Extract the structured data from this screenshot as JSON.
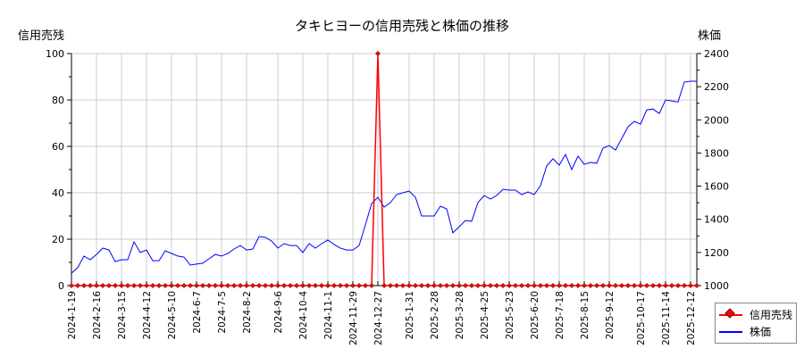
{
  "chart_data": {
    "type": "line",
    "title": "タキヒヨーの信用売残と株価の推移",
    "ylabel_left": "信用売残",
    "ylabel_right": "株価",
    "xlabel": "",
    "ylim_left": [
      0,
      100
    ],
    "ylim_right": [
      1000,
      2400
    ],
    "yticks_left": [
      0,
      20,
      40,
      60,
      80,
      100
    ],
    "yticks_right": [
      1000,
      1200,
      1400,
      1600,
      1800,
      2000,
      2200,
      2400
    ],
    "xtick_labels": [
      "2024-1-19",
      "2024-2-16",
      "2024-3-15",
      "2024-4-12",
      "2024-5-10",
      "2024-6-7",
      "2024-7-5",
      "2024-8-2",
      "2024-9-6",
      "2024-10-4",
      "2024-11-1",
      "2024-11-29",
      "2024-12-27",
      "2025-1-31",
      "2025-2-28",
      "2025-3-28",
      "2025-4-25",
      "2025-5-23",
      "2025-6-20",
      "2025-7-18",
      "2025-8-15",
      "2025-9-12",
      "2025-10-17",
      "2025-11-14",
      "2025-12-12"
    ],
    "xtick_indices": [
      0,
      4,
      8,
      12,
      16,
      20,
      24,
      28,
      33,
      37,
      41,
      45,
      49,
      54,
      58,
      62,
      66,
      70,
      74,
      78,
      82,
      86,
      91,
      95,
      99
    ],
    "grid": true,
    "legend_position": "bottom-right outside",
    "series": [
      {
        "name": "信用売残",
        "axis": "left",
        "color": "#ff0000",
        "marker": "diamond",
        "values": [
          0,
          0,
          0,
          0,
          0,
          0,
          0,
          0,
          0,
          0,
          0,
          0,
          0,
          0,
          0,
          0,
          0,
          0,
          0,
          0,
          0,
          0,
          0,
          0,
          0,
          0,
          0,
          0,
          0,
          0,
          0,
          0,
          0,
          0,
          0,
          0,
          0,
          0,
          0,
          0,
          0,
          0,
          0,
          0,
          0,
          0,
          0,
          0,
          0,
          100,
          0,
          0,
          0,
          0,
          0,
          0,
          0,
          0,
          0,
          0,
          0,
          0,
          0,
          0,
          0,
          0,
          0,
          0,
          0,
          0,
          0,
          0,
          0,
          0,
          0,
          0,
          0,
          0,
          0,
          0,
          0,
          0,
          0,
          0,
          0,
          0,
          0,
          0,
          0,
          0,
          0,
          0,
          0,
          0,
          0,
          0,
          0,
          0,
          0,
          0,
          0
        ]
      },
      {
        "name": "株価",
        "axis": "right",
        "color": "#0000ff",
        "values": [
          1075,
          1108,
          1178,
          1156,
          1188,
          1226,
          1215,
          1145,
          1156,
          1156,
          1264,
          1200,
          1215,
          1150,
          1150,
          1210,
          1194,
          1178,
          1172,
          1124,
          1130,
          1135,
          1162,
          1188,
          1178,
          1194,
          1221,
          1242,
          1215,
          1221,
          1296,
          1291,
          1269,
          1226,
          1253,
          1242,
          1242,
          1200,
          1253,
          1226,
          1253,
          1275,
          1248,
          1226,
          1215,
          1215,
          1242,
          1366,
          1495,
          1533,
          1474,
          1501,
          1549,
          1560,
          1571,
          1533,
          1420,
          1420,
          1420,
          1479,
          1463,
          1318,
          1355,
          1393,
          1388,
          1501,
          1544,
          1522,
          1544,
          1581,
          1576,
          1576,
          1549,
          1565,
          1549,
          1603,
          1722,
          1765,
          1727,
          1791,
          1700,
          1781,
          1732,
          1743,
          1738,
          1829,
          1845,
          1818,
          1888,
          1958,
          1991,
          1974,
          2060,
          2065,
          2038,
          2120,
          2114,
          2108,
          2228,
          2233,
          2233
        ]
      }
    ]
  },
  "legend": {
    "items": [
      {
        "label": "信用売残",
        "color": "#ff0000"
      },
      {
        "label": "株価",
        "color": "#0000ff"
      }
    ]
  }
}
